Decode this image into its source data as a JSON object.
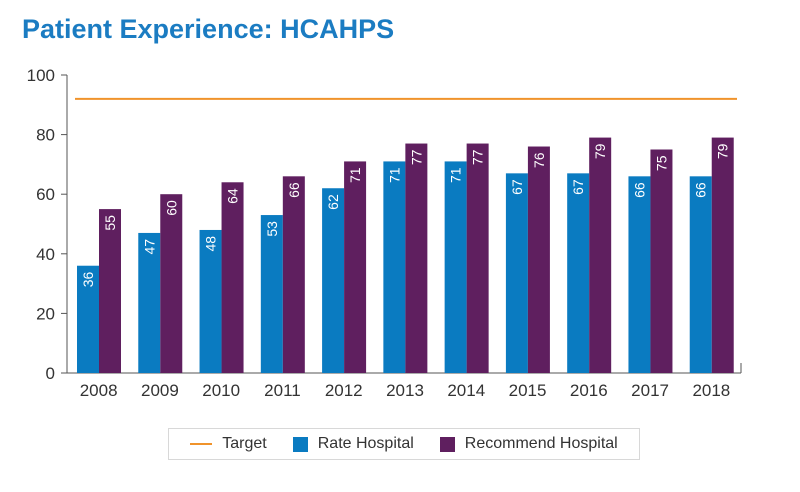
{
  "title": "Patient Experience: HCAHPS",
  "colors": {
    "target": "#f0932b",
    "rate": "#0a7bc1",
    "recommend": "#5f1f5f",
    "title": "#1b7cc2"
  },
  "chart_data": {
    "type": "bar",
    "title": "Patient Experience: HCAHPS",
    "categories": [
      "2008",
      "2009",
      "2010",
      "2011",
      "2012",
      "2013",
      "2014",
      "2015",
      "2016",
      "2017",
      "2018"
    ],
    "series": [
      {
        "name": "Rate Hospital",
        "values": [
          36,
          47,
          48,
          53,
          62,
          71,
          71,
          67,
          67,
          66,
          66
        ]
      },
      {
        "name": "Recommend Hospital",
        "values": [
          55,
          60,
          64,
          66,
          71,
          77,
          77,
          76,
          79,
          75,
          79
        ]
      }
    ],
    "target": {
      "name": "Target",
      "value": 92
    },
    "ylim": [
      0,
      100
    ],
    "yticks": [
      0,
      20,
      40,
      60,
      80,
      100
    ],
    "xlabel": "",
    "ylabel": "",
    "grid": false,
    "legend": "bottom"
  },
  "legend": {
    "target_label": "Target",
    "rate_label": "Rate Hospital",
    "recommend_label": "Recommend Hospital"
  }
}
